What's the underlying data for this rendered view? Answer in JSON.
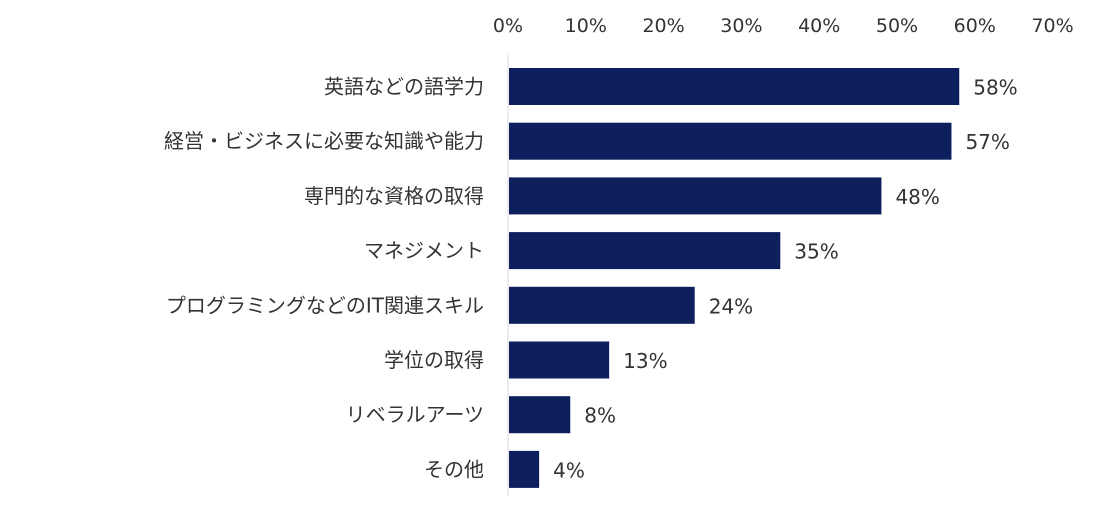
{
  "chart_data": {
    "type": "bar",
    "orientation": "horizontal",
    "title": "",
    "xlabel": "",
    "ylabel": "",
    "xlim": [
      0,
      70
    ],
    "ticks": [
      0,
      10,
      20,
      30,
      40,
      50,
      60,
      70
    ],
    "tick_labels": [
      "0%",
      "10%",
      "20%",
      "30%",
      "40%",
      "50%",
      "60%",
      "70%"
    ],
    "x_axis_position": "top",
    "grid": false,
    "legend": "none",
    "categories": [
      "英語などの語学力",
      "経営・ビジネスに必要な知識や能力",
      "専門的な資格の取得",
      "マネジメント",
      "プログラミングなどのIT関連スキル",
      "学位の取得",
      "リベラルアーツ",
      "その他"
    ],
    "values": [
      58,
      57,
      48,
      35,
      24,
      13,
      8,
      4
    ],
    "value_labels": [
      "58%",
      "57%",
      "48%",
      "35%",
      "24%",
      "13%",
      "8%",
      "4%"
    ],
    "colors": {
      "bar": "#0d1f5c",
      "axis": "#d9d9d9",
      "text": "#333333"
    }
  }
}
